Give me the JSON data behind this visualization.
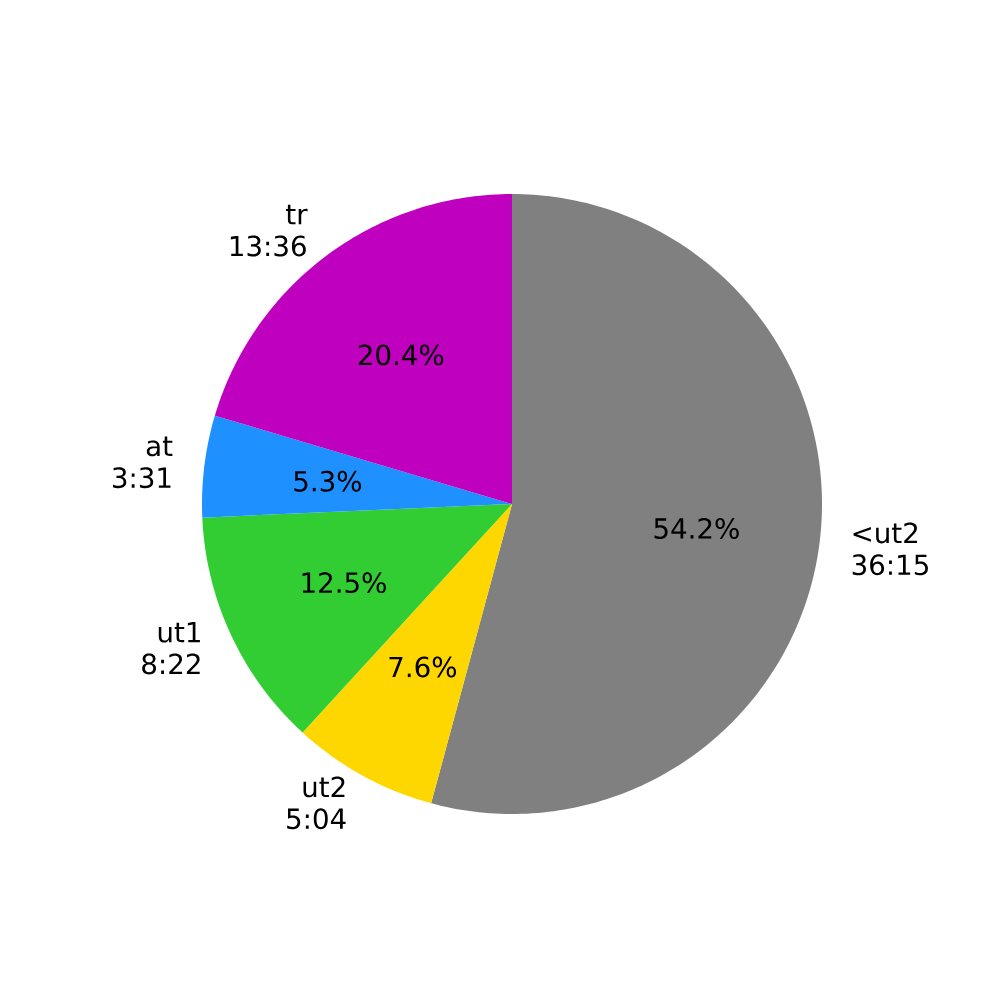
{
  "chart_data": {
    "type": "pie",
    "categories": [
      "<ut2",
      "ut2",
      "ut1",
      "at",
      "tr"
    ],
    "values": [
      54.2,
      7.6,
      12.5,
      5.3,
      20.4
    ],
    "colors": [
      "#808080",
      "#ffd700",
      "#32cd32",
      "#1e90ff",
      "#bf00bf"
    ],
    "value_labels": [
      "54.2%",
      "7.6%",
      "12.5%",
      "5.3%",
      "20.4%"
    ],
    "annotations": [
      "36:15",
      "5:04",
      "8:22",
      "3:31",
      "13:36"
    ]
  }
}
